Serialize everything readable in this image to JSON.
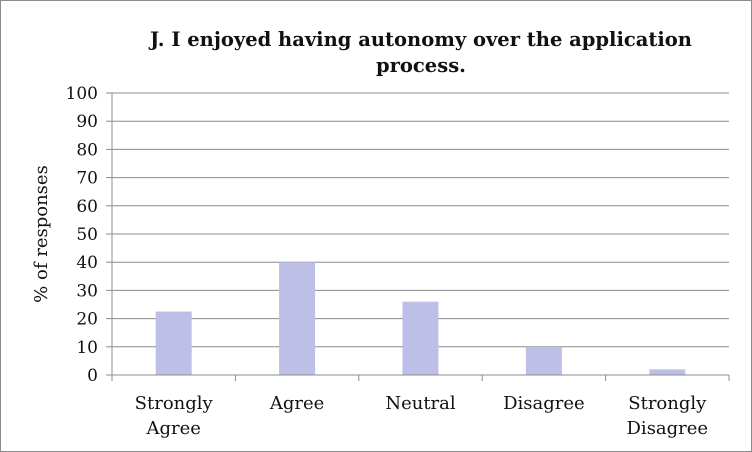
{
  "chart_data": {
    "type": "bar",
    "title": "J. I enjoyed having autonomy over the application process.",
    "title_lines": [
      "J. I enjoyed having autonomy over the application",
      "process."
    ],
    "ylabel": "% of responses",
    "xlabel": "",
    "categories": [
      [
        "Strongly",
        "Agree"
      ],
      [
        "Agree"
      ],
      [
        "Neutral"
      ],
      [
        "Disagree"
      ],
      [
        "Strongly",
        "Disagree"
      ]
    ],
    "values": [
      22.5,
      40,
      26,
      10,
      2
    ],
    "ylim": [
      0,
      100
    ],
    "yticks": [
      0,
      10,
      20,
      30,
      40,
      50,
      60,
      70,
      80,
      90,
      100
    ],
    "grid": true,
    "legend": "none",
    "bar_color": "#bdbfe6",
    "grid_color": "#8c8c8c"
  }
}
